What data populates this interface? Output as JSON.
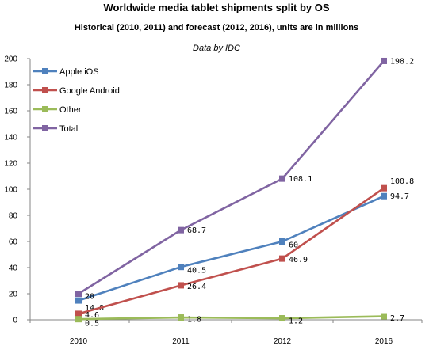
{
  "chart_data": {
    "type": "line",
    "title": "Worldwide media tablet shipments split by OS",
    "subtitle": "Historical (2010, 2011) and forecast (2012, 2016), units are in millions",
    "source_note": "Data by IDC",
    "categories": [
      "2010",
      "2011",
      "2012",
      "2016"
    ],
    "ylim": [
      0,
      200
    ],
    "y_ticks": [
      0,
      20,
      40,
      60,
      80,
      100,
      120,
      140,
      160,
      180,
      200
    ],
    "grid": false,
    "legend_position": "top-left",
    "series": [
      {
        "name": "Apple iOS",
        "color": "#4f81bd",
        "values": [
          14.8,
          40.5,
          60,
          94.7
        ],
        "labels": [
          "14.8",
          "40.5",
          "60",
          "94.7"
        ]
      },
      {
        "name": "Google Android",
        "color": "#c0504d",
        "values": [
          4.6,
          26.4,
          46.9,
          100.8
        ],
        "labels": [
          "4.6",
          "26.4",
          "46.9",
          "100.8"
        ]
      },
      {
        "name": "Other",
        "color": "#9bbb59",
        "values": [
          0.5,
          1.8,
          1.2,
          2.7
        ],
        "labels": [
          "0.5",
          "1.8",
          "1.2",
          "2.7"
        ]
      },
      {
        "name": "Total",
        "color": "#8064a2",
        "values": [
          20,
          68.7,
          108.1,
          198.2
        ],
        "labels": [
          "20",
          "68.7",
          "108.1",
          "198.2"
        ]
      }
    ]
  }
}
